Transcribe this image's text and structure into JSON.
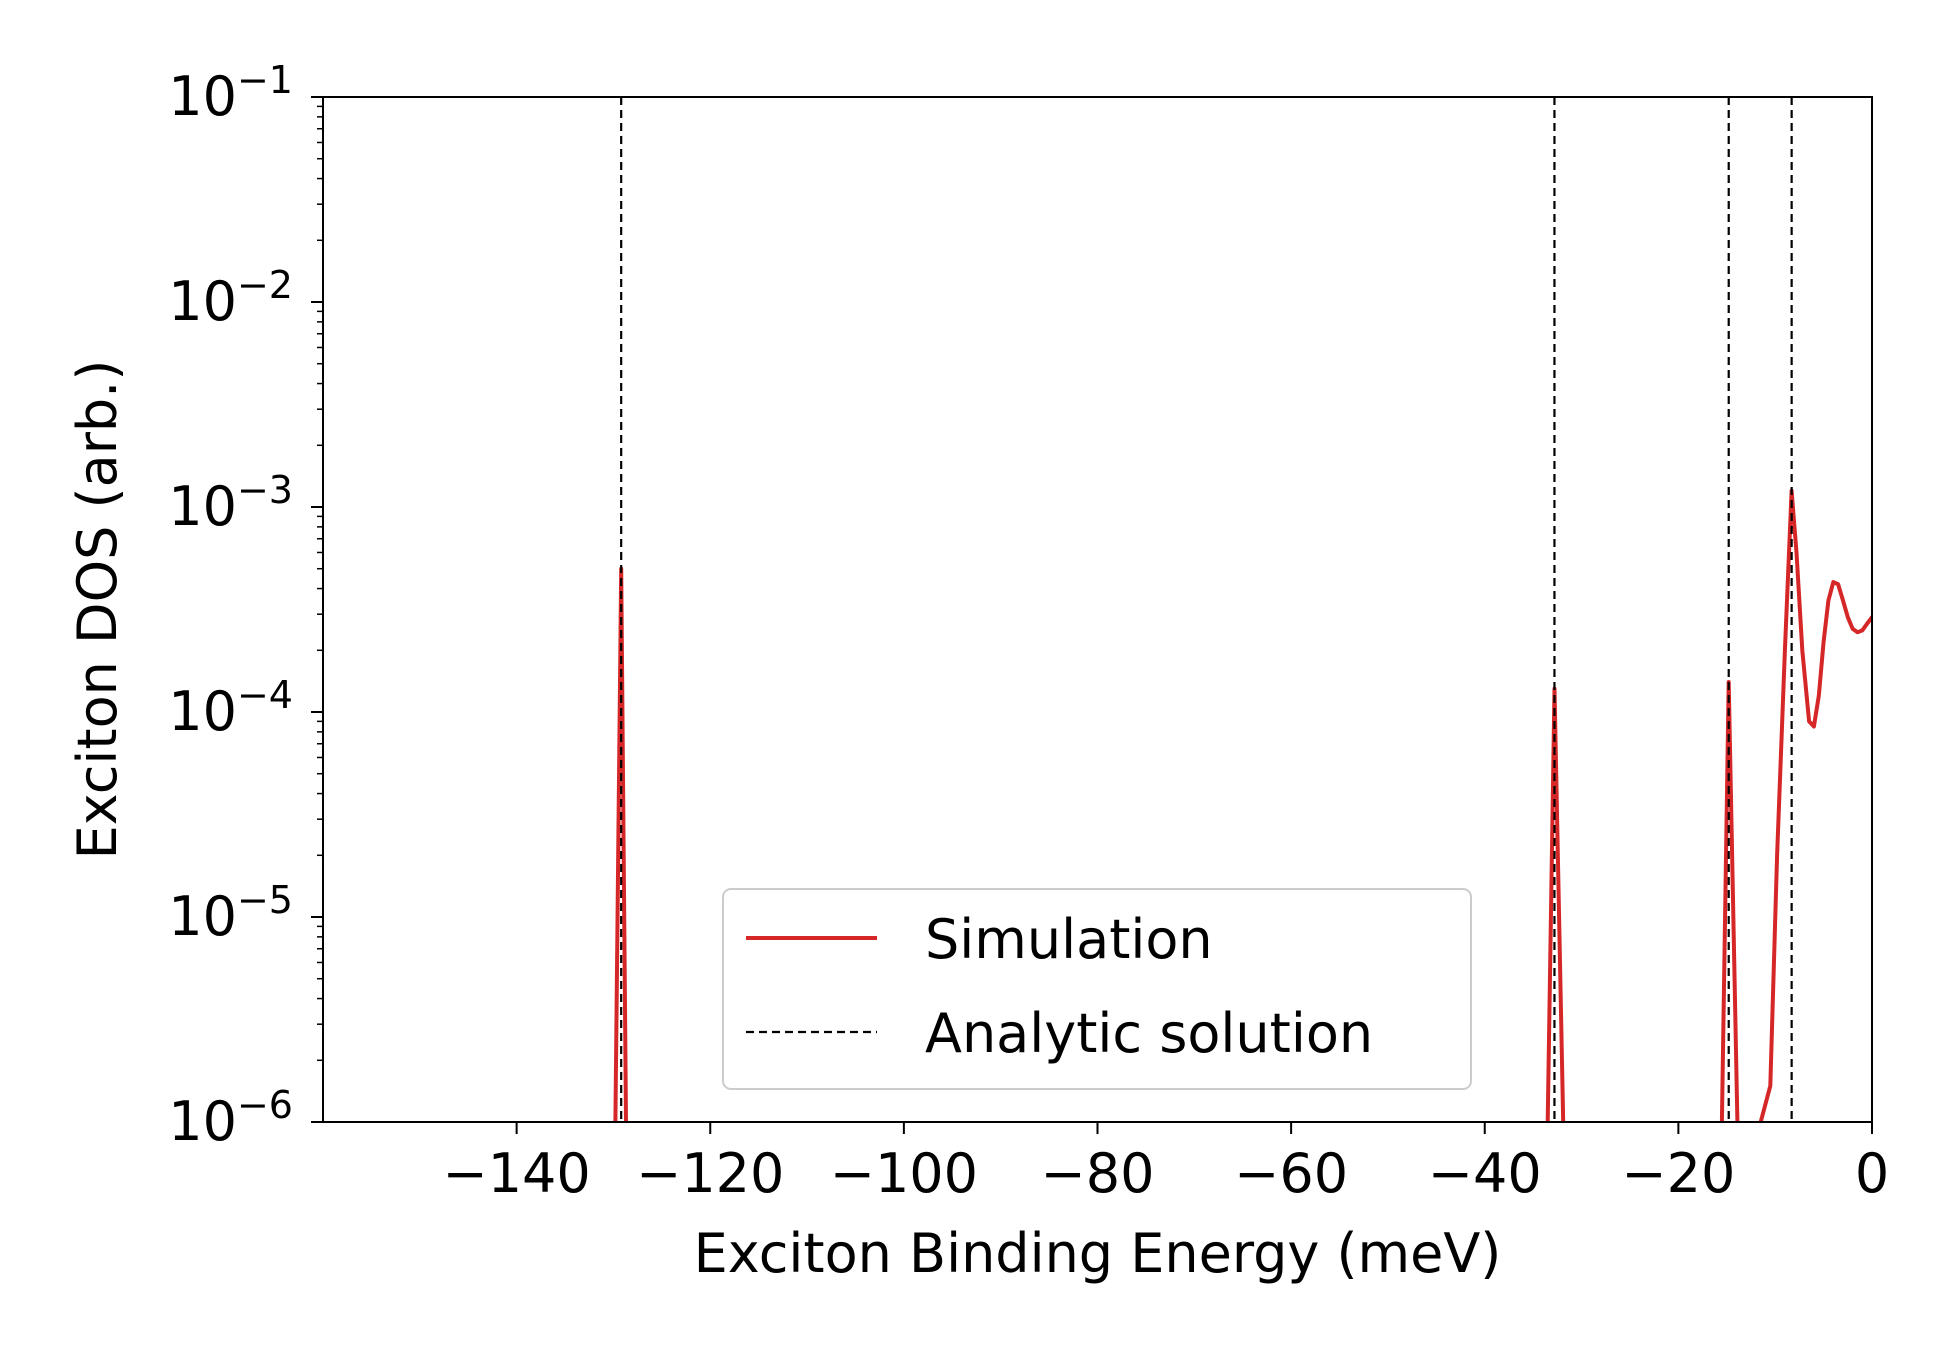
{
  "chart_data": {
    "type": "line",
    "xlabel": "Exciton Binding Energy (meV)",
    "ylabel": "Exciton DOS (arb.)",
    "xlim": [
      -160,
      0
    ],
    "ylim": [
      1e-06,
      0.1
    ],
    "yscale": "log",
    "grid": false,
    "legend_position": "lower-center",
    "xticks": [
      -140,
      -120,
      -100,
      -80,
      -60,
      -40,
      -20,
      0
    ],
    "xtick_labels": [
      "−140",
      "−120",
      "−100",
      "−80",
      "−60",
      "−40",
      "−20",
      "0"
    ],
    "yticks": [
      {
        "value": 1e-06,
        "base": "10",
        "exp": "−6"
      },
      {
        "value": 1e-05,
        "base": "10",
        "exp": "−5"
      },
      {
        "value": 0.0001,
        "base": "10",
        "exp": "−4"
      },
      {
        "value": 0.001,
        "base": "10",
        "exp": "−3"
      },
      {
        "value": 0.01,
        "base": "10",
        "exp": "−2"
      },
      {
        "value": 0.1,
        "base": "10",
        "exp": "−1"
      }
    ],
    "series": [
      {
        "name": "Simulation",
        "style": "solid",
        "color": "#d62728",
        "segments": [
          [
            [
              -129.8,
              1e-06
            ],
            [
              -129.2,
              0.0005
            ],
            [
              -128.7,
              1e-06
            ]
          ],
          [
            [
              -33.5,
              1e-06
            ],
            [
              -32.8,
              0.00013
            ],
            [
              -31.9,
              1e-06
            ]
          ],
          [
            [
              -15.5,
              1e-06
            ],
            [
              -14.8,
              0.00014
            ],
            [
              -13.9,
              1e-06
            ]
          ],
          [
            [
              -11.5,
              1e-06
            ],
            [
              -10.5,
              1.5e-06
            ],
            [
              -9.8,
              2e-05
            ],
            [
              -9.0,
              0.0002
            ],
            [
              -8.3,
              0.0012
            ],
            [
              -7.8,
              0.0006
            ],
            [
              -7.2,
              0.0002
            ],
            [
              -6.5,
              9e-05
            ],
            [
              -6.0,
              8.5e-05
            ],
            [
              -5.5,
              0.00012
            ],
            [
              -5.0,
              0.00022
            ],
            [
              -4.5,
              0.00035
            ],
            [
              -4.0,
              0.00043
            ],
            [
              -3.5,
              0.00042
            ],
            [
              -3.0,
              0.00035
            ],
            [
              -2.5,
              0.00029
            ],
            [
              -2.0,
              0.000255
            ],
            [
              -1.5,
              0.000245
            ],
            [
              -1.0,
              0.00025
            ],
            [
              -0.5,
              0.00027
            ],
            [
              0.0,
              0.00029
            ]
          ]
        ]
      },
      {
        "name": "Analytic solution",
        "style": "dashed",
        "color": "#000000",
        "x_positions": [
          -129.2,
          -32.8,
          -14.8,
          -8.3
        ]
      }
    ]
  }
}
